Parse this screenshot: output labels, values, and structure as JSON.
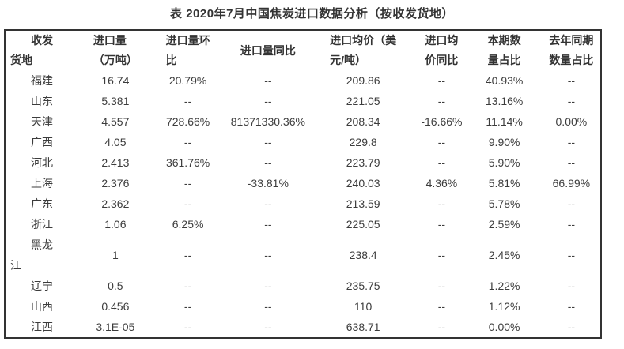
{
  "page": {
    "title": "表 2020年7月中国焦炭进口数据分析（按收发货地）"
  },
  "chart_data": {
    "type": "table",
    "title": "表 2020年7月中国焦炭进口数据分析（按收发货地）",
    "columns": [
      "收发货地",
      "进口量（万吨）",
      "进口量环比",
      "进口量同比",
      "进口均价（美元/吨）",
      "进口均价同比",
      "本期数量占比",
      "去年同期数量占比"
    ],
    "column_keys": [
      "region",
      "import_volume_10kt",
      "volume_mom",
      "volume_yoy",
      "avg_price_usd_per_ton",
      "price_yoy",
      "current_share",
      "prior_year_share"
    ],
    "rows": [
      [
        "福建",
        "16.74",
        "20.79%",
        "--",
        "209.86",
        "--",
        "40.93%",
        "--"
      ],
      [
        "山东",
        "5.381",
        "--",
        "--",
        "221.05",
        "--",
        "13.16%",
        "--"
      ],
      [
        "天津",
        "4.557",
        "728.66%",
        "81371330.36%",
        "208.34",
        "-16.66%",
        "11.14%",
        "0.00%"
      ],
      [
        "广西",
        "4.05",
        "--",
        "--",
        "229.8",
        "--",
        "9.90%",
        "--"
      ],
      [
        "河北",
        "2.413",
        "361.76%",
        "--",
        "223.79",
        "--",
        "5.90%",
        "--"
      ],
      [
        "上海",
        "2.376",
        "--",
        "-33.81%",
        "240.03",
        "4.36%",
        "5.81%",
        "66.99%"
      ],
      [
        "广东",
        "2.362",
        "--",
        "--",
        "213.59",
        "--",
        "5.78%",
        "--"
      ],
      [
        "浙江",
        "1.06",
        "6.25%",
        "--",
        "225.05",
        "--",
        "2.59%",
        "--"
      ],
      [
        "黑龙江",
        "1",
        "--",
        "--",
        "238.4",
        "--",
        "2.45%",
        "--"
      ],
      [
        "辽宁",
        "0.5",
        "--",
        "--",
        "235.75",
        "--",
        "1.22%",
        "--"
      ],
      [
        "山西",
        "0.456",
        "--",
        "--",
        "110",
        "--",
        "1.12%",
        "--"
      ],
      [
        "江西",
        "3.1E-05",
        "--",
        "--",
        "638.71",
        "--",
        "0.00%",
        "--"
      ]
    ]
  },
  "display": {
    "header_lines": [
      "收发\n货地",
      "进口量\n（万吨）",
      "进口量环\n比",
      "进口量同比",
      "进口均价（美\n元/吨）",
      "进口均\n价同比",
      "本期数\n量占比",
      "去年同期\n数量占比"
    ],
    "cell_overrides": {
      "黑龙江": "黑龙\n江"
    }
  },
  "colors": {
    "background": "#ffffff",
    "text": "#3c3c3c",
    "header_text": "#333333",
    "table_border": "#333333",
    "page_edge_line": "#cccccc"
  }
}
